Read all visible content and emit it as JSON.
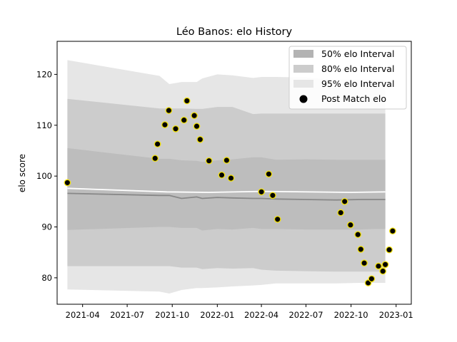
{
  "chart_data": {
    "type": "line",
    "title": "Léo Banos: elo History",
    "xlabel": "",
    "ylabel": "elo score",
    "xlim": [
      "2021-02-08",
      "2023-02-01"
    ],
    "ylim": [
      74.8,
      126.5
    ],
    "x_ticks": [
      "2021-04",
      "2021-07",
      "2021-10",
      "2022-01",
      "2022-04",
      "2022-07",
      "2022-10",
      "2023-01"
    ],
    "y_ticks": [
      80,
      90,
      100,
      110,
      120
    ],
    "grid": false,
    "legend_position": "top-right",
    "legend": [
      {
        "label": "50% elo Interval",
        "color": "#b3b3b3"
      },
      {
        "label": "80% elo Interval",
        "color": "#cccccc"
      },
      {
        "label": "95% elo Interval",
        "color": "#e6e6e6"
      },
      {
        "label": "Post Match elo",
        "color": "#000000"
      }
    ],
    "intervals": {
      "x": [
        "2021-03-01",
        "2021-09-05",
        "2021-09-25",
        "2021-10-20",
        "2021-11-20",
        "2021-12-01",
        "2022-01-01",
        "2022-02-01",
        "2022-03-15",
        "2022-04-01",
        "2022-05-01",
        "2022-07-01",
        "2022-09-01",
        "2022-10-20",
        "2022-11-20",
        "2022-12-10"
      ],
      "median": [
        96.6,
        96.2,
        96.2,
        95.6,
        95.9,
        95.6,
        95.8,
        95.7,
        95.6,
        95.6,
        95.5,
        95.4,
        95.3,
        95.4,
        95.4,
        95.4
      ],
      "p50": {
        "low": [
          89.4,
          90.0,
          90.0,
          89.8,
          89.8,
          89.3,
          89.6,
          89.5,
          89.8,
          89.6,
          89.6,
          89.5,
          89.5,
          89.5,
          89.6,
          89.6
        ],
        "high": [
          105.5,
          103.4,
          103.4,
          103.1,
          103.0,
          102.8,
          103.1,
          103.3,
          103.7,
          103.7,
          103.2,
          103.3,
          103.2,
          103.2,
          103.2,
          103.2
        ]
      },
      "p80": {
        "low": [
          82.3,
          82.3,
          82.3,
          82.0,
          82.0,
          81.7,
          81.9,
          81.8,
          81.9,
          81.6,
          81.4,
          81.3,
          81.2,
          81.2,
          81.2,
          81.2
        ],
        "high": [
          115.2,
          113.3,
          113.3,
          113.3,
          113.2,
          113.2,
          113.6,
          113.6,
          112.2,
          112.3,
          112.3,
          112.3,
          112.3,
          112.3,
          112.3,
          112.3
        ]
      },
      "p95": {
        "low": [
          77.7,
          77.3,
          76.9,
          77.6,
          78.0,
          78.0,
          78.1,
          78.3,
          78.5,
          78.6,
          78.9,
          78.9,
          78.9,
          79.0,
          79.0,
          79.0
        ],
        "high": [
          122.8,
          119.7,
          118.1,
          118.5,
          118.5,
          119.2,
          120.0,
          119.8,
          119.3,
          119.5,
          119.5,
          119.4,
          118.9,
          118.9,
          118.9,
          118.9
        ]
      }
    },
    "mean_line": {
      "x": [
        "2021-03-01",
        "2021-09-20",
        "2021-12-15",
        "2022-04-01",
        "2022-10-01",
        "2022-12-10"
      ],
      "y": [
        97.6,
        96.9,
        96.8,
        97.0,
        96.8,
        96.9
      ]
    },
    "series": [
      {
        "name": "Post Match elo",
        "x": [
          "2021-03-01",
          "2021-08-27",
          "2021-09-01",
          "2021-09-16",
          "2021-09-24",
          "2021-10-08",
          "2021-10-25",
          "2021-10-31",
          "2021-11-15",
          "2021-11-20",
          "2021-11-27",
          "2021-12-15",
          "2022-01-10",
          "2022-01-20",
          "2022-01-29",
          "2022-04-01",
          "2022-04-16",
          "2022-04-24",
          "2022-05-04",
          "2022-09-10",
          "2022-09-18",
          "2022-09-30",
          "2022-10-15",
          "2022-10-21",
          "2022-10-28",
          "2022-11-05",
          "2022-11-12",
          "2022-11-26",
          "2022-12-05",
          "2022-12-10",
          "2022-12-18",
          "2022-12-25"
        ],
        "y": [
          98.7,
          103.5,
          106.3,
          110.1,
          112.9,
          109.3,
          111.0,
          114.8,
          111.9,
          109.8,
          107.2,
          103.0,
          100.2,
          103.1,
          99.6,
          96.9,
          100.4,
          96.2,
          91.5,
          92.8,
          95.0,
          90.4,
          88.5,
          85.6,
          82.9,
          79.0,
          79.8,
          82.3,
          81.3,
          82.6,
          85.5,
          89.2
        ]
      }
    ]
  }
}
